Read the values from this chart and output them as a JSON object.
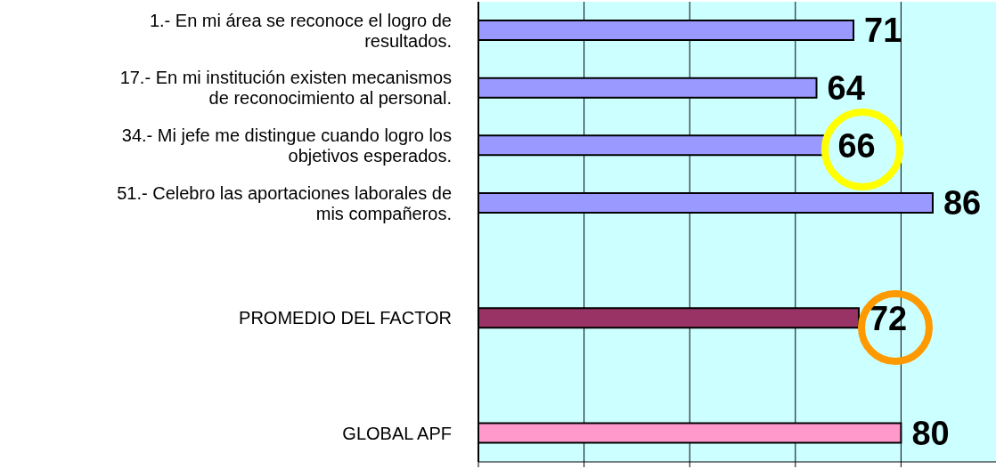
{
  "chart_data": {
    "type": "bar",
    "orientation": "horizontal",
    "categories": [
      "1.- En mi área se reconoce el logro de resultados.",
      "17.- En mi institución existen mecanismos de reconocimiento al personal.",
      "34.- Mi jefe me distingue cuando logro los objetivos esperados.",
      "51.- Celebro las aportaciones laborales de mis compañeros.",
      null,
      "PROMEDIO DEL FACTOR",
      null,
      "GLOBAL APF"
    ],
    "values": [
      71,
      64,
      66,
      86,
      null,
      72,
      null,
      80
    ],
    "colors": [
      "#9999ff",
      "#9999ff",
      "#9999ff",
      "#9999ff",
      "#9999ff",
      "#993366",
      "#993366",
      "#ff99cc"
    ],
    "xlim": [
      0,
      100
    ],
    "xticks": [
      {
        "value": 0,
        "label": null
      },
      {
        "value": 20,
        "label": null
      },
      {
        "value": 40,
        "label": null
      },
      {
        "value": 60,
        "label": null
      },
      {
        "value": 80,
        "label": null
      },
      {
        "value": 100,
        "label": null
      }
    ],
    "tick_labels": "y",
    "grid": "x",
    "data_labels": true
  }
}
